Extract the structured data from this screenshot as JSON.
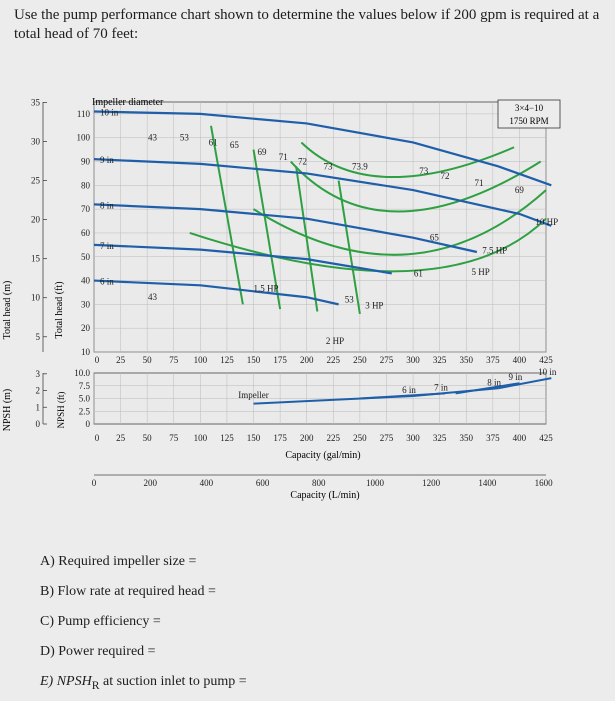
{
  "question": "Use the pump performance chart shown to determine the values below if 200 gpm is required at a total head of 70 feet:",
  "chart_data": {
    "type": "line",
    "title": "",
    "pump_label": [
      "3×4−10",
      "1750 RPM"
    ],
    "header_label": "Impeller diameter",
    "head_m_label": "Total head (m)",
    "head_ft_label": "Total head (ft)",
    "npsh_m_label": "NPSH (m)",
    "npsh_ft_label": "NPSH (ft)",
    "capacity_gpm_label": "Capacity (gal/min)",
    "capacity_lpm_label": "Capacity (L/min)",
    "x_gpm_ticks": [
      "0",
      "25",
      "50",
      "75",
      "100",
      "125",
      "150",
      "175",
      "200",
      "225",
      "250",
      "275",
      "300",
      "325",
      "350",
      "375",
      "400",
      "425"
    ],
    "x_lpm_ticks": [
      "0",
      "200",
      "400",
      "600",
      "800",
      "1000",
      "1200",
      "1400",
      "1600"
    ],
    "head_ft_ticks": [
      "10",
      "20",
      "30",
      "40",
      "50",
      "60",
      "70",
      "80",
      "90",
      "100",
      "110"
    ],
    "head_m_ticks": [
      "5",
      "10",
      "15",
      "20",
      "25",
      "30",
      "35"
    ],
    "npsh_ft_ticks": [
      "0",
      "2.5",
      "5.0",
      "7.5",
      "10.0"
    ],
    "npsh_m_ticks": [
      "0",
      "1",
      "2",
      "3"
    ],
    "xlim": [
      0,
      425
    ],
    "ylim": [
      10,
      115
    ],
    "impeller_curves": [
      {
        "name": "10 in",
        "x": [
          0,
          100,
          200,
          300,
          380,
          430
        ],
        "y": [
          111,
          110,
          106,
          98,
          88,
          80
        ]
      },
      {
        "name": "9 in",
        "x": [
          0,
          100,
          200,
          300,
          400,
          430
        ],
        "y": [
          91,
          89,
          85,
          78,
          68,
          63
        ]
      },
      {
        "name": "8 in",
        "x": [
          0,
          100,
          200,
          300,
          360
        ],
        "y": [
          72,
          70,
          66,
          58,
          52
        ]
      },
      {
        "name": "7 in",
        "x": [
          0,
          100,
          200,
          280
        ],
        "y": [
          55,
          53,
          49,
          43
        ]
      },
      {
        "name": "6 in",
        "x": [
          0,
          100,
          200,
          230
        ],
        "y": [
          40,
          38,
          33,
          30
        ]
      }
    ],
    "efficiency_labels": [
      "43",
      "53",
      "61",
      "65",
      "69",
      "71",
      "72",
      "73",
      "73.9",
      "73",
      "72",
      "71",
      "69",
      "65",
      "61",
      "53",
      "43"
    ],
    "power_labels": [
      "1.5 HP",
      "2 HP",
      "3 HP",
      "5 HP",
      "7.5 HP",
      "10 HP"
    ],
    "npsh_label": "Impeller",
    "npsh_curves": [
      {
        "name": "6 in",
        "x": [
          150,
          300
        ],
        "y": [
          4.0,
          5.5
        ]
      },
      {
        "name": "7 in",
        "x": [
          250,
          330
        ],
        "y": [
          5.0,
          6.0
        ]
      },
      {
        "name": "8 in",
        "x": [
          300,
          380
        ],
        "y": [
          5.5,
          7.0
        ]
      },
      {
        "name": "9 in",
        "x": [
          340,
          400
        ],
        "y": [
          6.0,
          8.0
        ]
      },
      {
        "name": "10 in",
        "x": [
          380,
          430
        ],
        "y": [
          7.0,
          9.0
        ]
      }
    ]
  },
  "answers": [
    "A) Required impeller size =",
    "B) Flow rate at required head =",
    "C) Pump efficiency =",
    "D) Power required =",
    "E) NPSH",
    "R",
    " at suction inlet to pump ="
  ]
}
